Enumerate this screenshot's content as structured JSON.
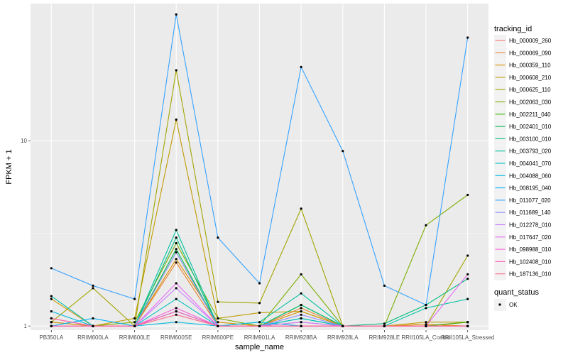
{
  "chart_data": {
    "type": "line",
    "title": "",
    "xlabel": "sample_name",
    "ylabel": "FPKM + 1",
    "y_scale": "log10",
    "ylim": [
      0.95,
      55
    ],
    "y_ticks": [
      1,
      10
    ],
    "y_tick_labels": [
      "1",
      "10"
    ],
    "grid": true,
    "categories": [
      "PB350LA",
      "RRIM600LA",
      "RRIM600LE",
      "RRIM600SE",
      "RRIM600PE",
      "RRIM901LA",
      "RRIM928BA",
      "RRIM928LA",
      "RRIM928LE",
      "RRII105LA_Control",
      "RRII105LA_Stressed"
    ],
    "category_labels": [
      "PB350LA",
      "RRIM600LA",
      "RRIM600LE",
      "RRIM600SE",
      "RRIM600PE",
      "RRIM901LA",
      "RRIM928BA",
      "RRIM928LA",
      "RRIM928LE",
      "RRII105LA_Control",
      "RRII105LA_Stressed"
    ],
    "legend": {
      "title": "tracking_id",
      "placement": "right"
    },
    "legend2": {
      "title": "quant_status",
      "entries": [
        "OK"
      ]
    },
    "series": [
      {
        "name": "Hb_000009_260",
        "color": "#F8766D",
        "values": [
          1.05,
          1.0,
          1.0,
          1.2,
          1.0,
          1.0,
          1.05,
          1.0,
          1.0,
          1.0,
          1.05
        ]
      },
      {
        "name": "Hb_000069_090",
        "color": "#EA8331",
        "values": [
          1.1,
          1.0,
          1.0,
          2.2,
          1.0,
          1.0,
          1.25,
          1.0,
          1.0,
          1.0,
          1.05
        ]
      },
      {
        "name": "Hb_000359_110",
        "color": "#D89000",
        "values": [
          1.4,
          1.0,
          1.0,
          2.3,
          1.05,
          1.0,
          1.2,
          1.0,
          1.0,
          1.02,
          1.0
        ]
      },
      {
        "name": "Hb_000608_210",
        "color": "#C09B00",
        "values": [
          1.05,
          1.0,
          1.1,
          13.0,
          1.1,
          1.18,
          1.2,
          1.0,
          1.0,
          1.05,
          1.05
        ]
      },
      {
        "name": "Hb_000625_110",
        "color": "#A3A500",
        "values": [
          1.05,
          1.6,
          1.0,
          24.0,
          1.35,
          1.33,
          4.3,
          1.0,
          1.0,
          1.0,
          2.4
        ]
      },
      {
        "name": "Hb_002063_030",
        "color": "#7CAE00",
        "values": [
          1.0,
          1.0,
          1.05,
          2.8,
          1.1,
          1.0,
          1.9,
          1.0,
          1.0,
          3.5,
          5.1
        ]
      },
      {
        "name": "Hb_002211_040",
        "color": "#39B600",
        "values": [
          1.0,
          1.0,
          1.0,
          2.5,
          1.0,
          1.0,
          1.3,
          1.0,
          1.0,
          1.0,
          1.05
        ]
      },
      {
        "name": "Hb_002401_010",
        "color": "#00BB4E",
        "values": [
          1.0,
          1.0,
          1.0,
          2.6,
          1.0,
          1.0,
          1.1,
          1.0,
          1.0,
          1.0,
          1.0
        ]
      },
      {
        "name": "Hb_003100_010",
        "color": "#00BF7D",
        "values": [
          1.0,
          1.0,
          1.0,
          3.0,
          1.0,
          1.0,
          1.3,
          1.0,
          1.03,
          1.3,
          1.8
        ]
      },
      {
        "name": "Hb_003793_020",
        "color": "#00C1A3",
        "values": [
          1.45,
          1.0,
          1.0,
          3.3,
          1.0,
          1.05,
          1.5,
          1.0,
          1.0,
          1.25,
          1.4
        ]
      },
      {
        "name": "Hb_004041_070",
        "color": "#00BFC4",
        "values": [
          1.0,
          1.0,
          1.0,
          1.4,
          1.0,
          1.0,
          1.1,
          1.0,
          1.0,
          1.0,
          1.0
        ]
      },
      {
        "name": "Hb_004088_060",
        "color": "#00BAE0",
        "values": [
          1.2,
          1.0,
          1.0,
          1.05,
          1.0,
          1.05,
          1.0,
          1.0,
          1.0,
          1.0,
          1.0
        ]
      },
      {
        "name": "Hb_008195_040",
        "color": "#00B0F6",
        "values": [
          1.0,
          1.1,
          1.0,
          1.2,
          1.0,
          1.0,
          1.0,
          1.0,
          1.0,
          1.0,
          1.0
        ]
      },
      {
        "name": "Hb_011077_020",
        "color": "#35A2FF",
        "values": [
          2.05,
          1.65,
          1.4,
          48.0,
          3.0,
          1.7,
          25.0,
          8.8,
          1.65,
          1.3,
          36.0
        ]
      },
      {
        "name": "Hb_011689_140",
        "color": "#9590FF",
        "values": [
          1.0,
          1.0,
          1.0,
          2.5,
          1.0,
          1.0,
          1.15,
          1.0,
          1.0,
          1.0,
          1.0
        ]
      },
      {
        "name": "Hb_012278_010",
        "color": "#C77CFF",
        "values": [
          1.0,
          1.0,
          1.0,
          1.6,
          1.0,
          1.0,
          1.05,
          1.0,
          1.0,
          1.0,
          1.0
        ]
      },
      {
        "name": "Hb_017647_020",
        "color": "#E76BF3",
        "values": [
          1.0,
          1.0,
          1.0,
          1.7,
          1.0,
          1.0,
          1.0,
          1.0,
          1.0,
          1.0,
          1.9
        ]
      },
      {
        "name": "Hb_098988_010",
        "color": "#FA62DB",
        "values": [
          1.0,
          1.0,
          1.0,
          1.25,
          1.0,
          1.0,
          1.0,
          1.0,
          1.0,
          1.0,
          1.0
        ]
      },
      {
        "name": "Hb_102408_010",
        "color": "#FF62BC",
        "values": [
          1.1,
          1.0,
          1.0,
          1.2,
          1.0,
          1.0,
          1.0,
          1.0,
          1.0,
          1.0,
          1.0
        ]
      },
      {
        "name": "Hb_187136_010",
        "color": "#FF6C91",
        "values": [
          1.0,
          1.0,
          1.0,
          1.15,
          1.0,
          1.0,
          1.0,
          1.0,
          1.0,
          1.0,
          1.0
        ]
      }
    ]
  }
}
